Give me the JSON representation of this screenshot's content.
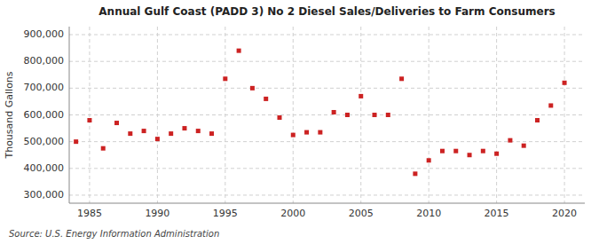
{
  "chart_data": {
    "type": "scatter",
    "title": "Annual Gulf Coast (PADD 3) No 2 Diesel Sales/Deliveries to Farm Consumers",
    "ylabel": "Thousand Gallons",
    "annotations": [
      "Source: U.S. Energy Information Administration"
    ],
    "x": [
      1984,
      1985,
      1986,
      1987,
      1988,
      1989,
      1990,
      1991,
      1992,
      1993,
      1994,
      1995,
      1996,
      1997,
      1998,
      1999,
      2000,
      2001,
      2002,
      2003,
      2004,
      2005,
      2006,
      2007,
      2008,
      2009,
      2010,
      2011,
      2012,
      2013,
      2014,
      2015,
      2016,
      2017,
      2018,
      2019,
      2020
    ],
    "values": [
      500000,
      580000,
      475000,
      570000,
      530000,
      540000,
      510000,
      530000,
      550000,
      540000,
      530000,
      735000,
      840000,
      700000,
      660000,
      590000,
      525000,
      535000,
      535000,
      610000,
      600000,
      670000,
      600000,
      600000,
      735000,
      380000,
      430000,
      465000,
      465000,
      450000,
      465000,
      455000,
      505000,
      485000,
      580000,
      635000,
      720000
    ],
    "color": "#cc2222",
    "marker": "square",
    "xlim": [
      1983.5,
      2021.5
    ],
    "xticks": [
      1985,
      1990,
      1995,
      2000,
      2005,
      2010,
      2015,
      2020
    ],
    "ylim": [
      270000,
      930000
    ],
    "yticks": [
      {
        "value": 300000,
        "label": "300,000"
      },
      {
        "value": 400000,
        "label": "400,000"
      },
      {
        "value": 500000,
        "label": "500,000"
      },
      {
        "value": 600000,
        "label": "600,000"
      },
      {
        "value": 700000,
        "label": "700,000"
      },
      {
        "value": 800000,
        "label": "800,000"
      },
      {
        "value": 900000,
        "label": "900,000"
      }
    ],
    "grid": true
  }
}
